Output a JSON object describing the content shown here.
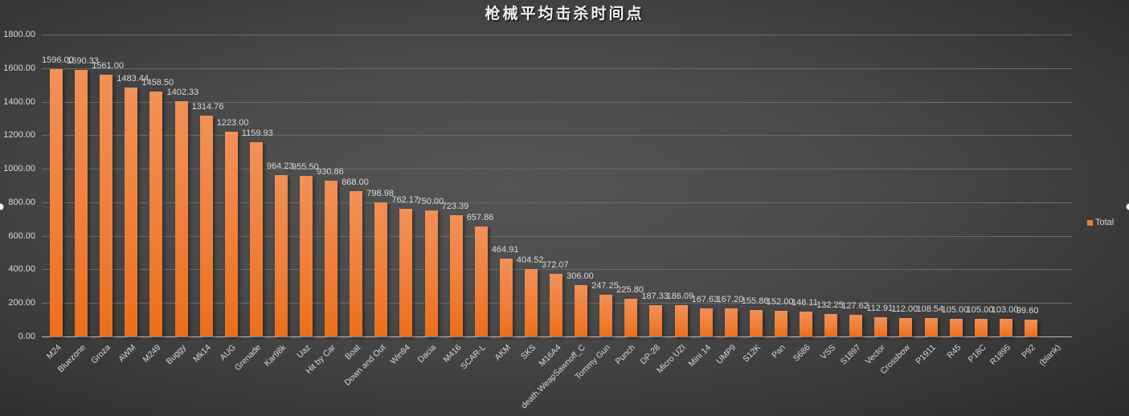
{
  "chart_data": {
    "type": "bar",
    "title": "枪械平均击杀时间点",
    "xlabel": "",
    "ylabel": "",
    "ylim": [
      0,
      1800
    ],
    "yticks": [
      "0.00",
      "200.00",
      "400.00",
      "600.00",
      "800.00",
      "1000.00",
      "1200.00",
      "1400.00",
      "1600.00",
      "1800.00"
    ],
    "grid": true,
    "legend_position": "right",
    "legend": [
      "Total"
    ],
    "bar_color": "#ef7e36",
    "background_color": "#404040",
    "categories": [
      "M24",
      "Bluezone",
      "Groza",
      "AWM",
      "M249",
      "Buggy",
      "Mk14",
      "AUG",
      "Grenade",
      "Kar98k",
      "Uaz",
      "Hit by Car",
      "Boat",
      "Down and Out",
      "Win94",
      "Dacia",
      "M416",
      "SCAR-L",
      "AKM",
      "SKS",
      "M16A4",
      "death.WeapSawnoff_C",
      "Tommy Gun",
      "Punch",
      "DP-28",
      "Micro UZI",
      "Mini 14",
      "UMP9",
      "S12K",
      "Pan",
      "S686",
      "VSS",
      "S1897",
      "Vector",
      "Crossbow",
      "P1911",
      "R45",
      "P18C",
      "R1895",
      "P92",
      "(blank)"
    ],
    "series": [
      {
        "name": "Total",
        "values": [
          1596.0,
          1590.33,
          1561.0,
          1483.44,
          1458.5,
          1402.33,
          1314.76,
          1223.0,
          1159.93,
          964.23,
          955.5,
          930.86,
          868.0,
          798.98,
          762.17,
          750.0,
          723.39,
          657.86,
          464.91,
          404.52,
          372.07,
          306.0,
          247.25,
          225.8,
          187.33,
          186.09,
          167.63,
          167.2,
          155.86,
          152.0,
          148.11,
          132.25,
          127.62,
          112.91,
          112.0,
          108.54,
          105.0,
          105.0,
          103.0,
          99.6,
          null
        ],
        "labels": [
          "1596.00",
          "1590.33",
          "1561.00",
          "1483.44",
          "1458.50",
          "1402.33",
          "1314.76",
          "1223.00",
          "1159.93",
          "964.23",
          "955.50",
          "930.86",
          "868.00",
          "798.98",
          "762.17",
          "750.00",
          "723.39",
          "657.86",
          "464.91",
          "404.52",
          "372.07",
          "306.00",
          "247.25",
          "225.80",
          "187.33",
          "186.09",
          "167.63",
          "167.20",
          "155.86",
          "152.00",
          "148.11",
          "132.25",
          "127.62",
          "112.91",
          "112.00",
          "108.54",
          "105.00",
          "105.00",
          "103.00",
          "99.60",
          ""
        ]
      }
    ]
  }
}
